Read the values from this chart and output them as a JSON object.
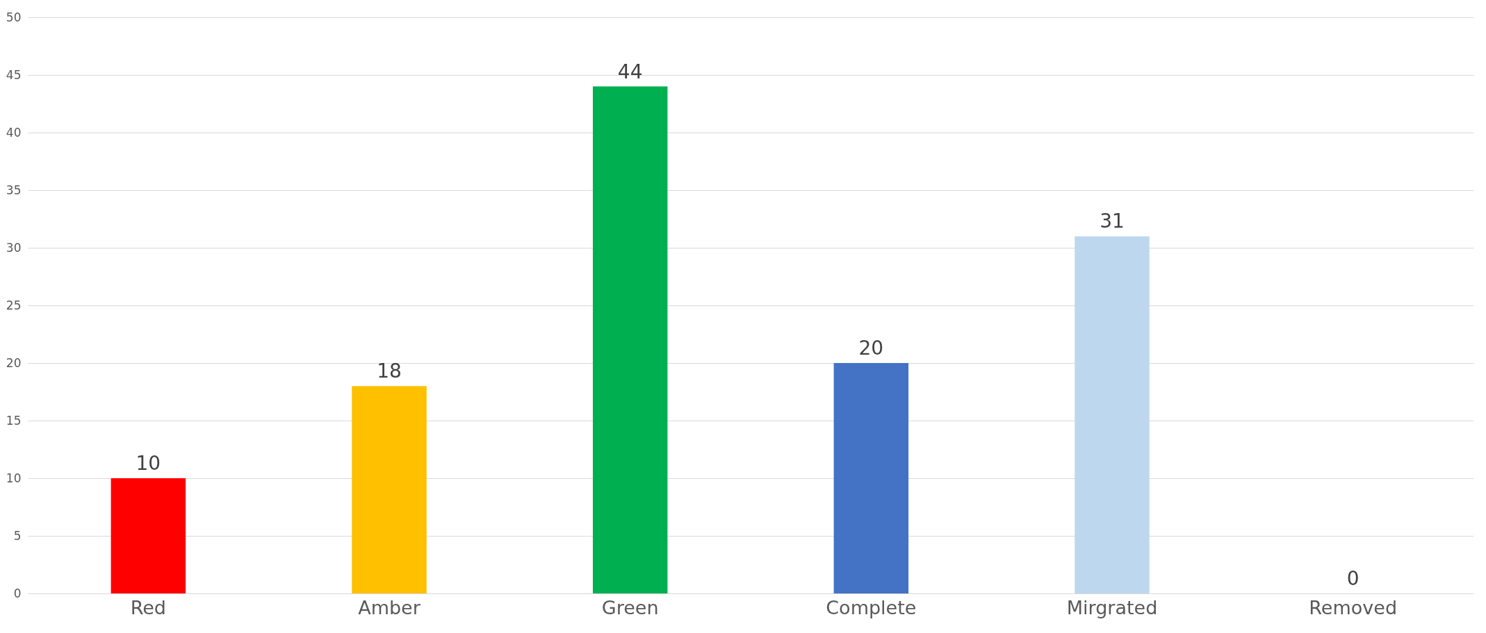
{
  "chart_data": {
    "type": "bar",
    "categories": [
      "Red",
      "Amber",
      "Green",
      "Complete",
      "Mirgrated",
      "Removed"
    ],
    "values": [
      10,
      18,
      44,
      20,
      31,
      0
    ],
    "colors": [
      "#ff0000",
      "#ffc000",
      "#00b050",
      "#4472c4",
      "#bdd7ee",
      "#a5a5a5"
    ],
    "ylim": [
      0,
      50
    ],
    "yticks": [
      0,
      5,
      10,
      15,
      20,
      25,
      30,
      35,
      40,
      45,
      50
    ],
    "grid": "y",
    "data_labels": true
  }
}
